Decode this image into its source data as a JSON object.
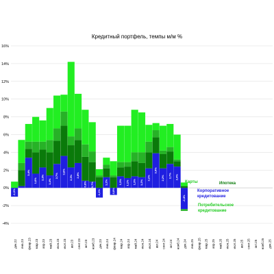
{
  "chart_data": {
    "type": "bar",
    "stacked": true,
    "title": "Кредитный портфель, темпы м/м %",
    "ylim": [
      -4,
      16
    ],
    "yticks": [
      "-4%",
      "-2%",
      "0%",
      "2%",
      "4%",
      "6%",
      "8%",
      "10%",
      "12%",
      "14%",
      "16%"
    ],
    "yticks_values": [
      -4,
      -2,
      0,
      2,
      4,
      6,
      8,
      10,
      12,
      14,
      16
    ],
    "grid": true,
    "categories": [
      "дек.22",
      "янв.23",
      "февр.23",
      "мар.23",
      "апр.23",
      "май.23",
      "июн.23",
      "июл.23",
      "авг.23",
      "сент.23",
      "окт.23",
      "нояб.23",
      "дек.23",
      "янв.24",
      "февр.24",
      "мар.24",
      "апр.24",
      "май.24",
      "июн.24",
      "июл.24",
      "авг.24",
      "сент.24",
      "окт.24",
      "нояб.24",
      "дек.24",
      "янв.25",
      "февр.25",
      "мар.25",
      "апр.25",
      "май.25",
      "июн.25",
      "июл.25",
      "авг.25",
      "сент.25",
      "окт.25",
      "нояб.25",
      "дек.25"
    ],
    "series": [
      {
        "name": "Корпоративное кредитование",
        "color": "#1f1fe0",
        "values": [
          -1.0,
          0.2,
          3.4,
          1.6,
          2.3,
          1.4,
          2.7,
          3.6,
          2.3,
          2.8,
          0.8,
          0.7,
          -1.1,
          1.2,
          -0.8,
          1.3,
          1.1,
          1.3,
          1.2,
          2.2,
          3.9,
          2.2,
          2.7,
          2.4,
          -2.4,
          null,
          null,
          null,
          null,
          null,
          null,
          null,
          null,
          null,
          null,
          null,
          null
        ]
      },
      {
        "name": "Ипотека",
        "color": "#0a7a0a",
        "values": [
          0,
          1.8,
          1.0,
          2.4,
          2.0,
          2.6,
          2.6,
          3.4,
          2.5,
          2.6,
          2.7,
          2.2,
          1.2,
          1.0,
          1.2,
          1.0,
          1.3,
          1.7,
          1.6,
          1.8,
          1.8,
          1.6,
          1.4,
          0.6,
          0.2,
          null,
          null,
          null,
          null,
          null,
          null,
          null,
          null,
          null,
          null,
          null,
          null
        ]
      },
      {
        "name": "Потребительское кредитование",
        "color": "#27b227",
        "values": [
          0,
          0.8,
          0.8,
          1.2,
          0.9,
          1.4,
          1.4,
          1.6,
          1.0,
          1.3,
          1.4,
          1.2,
          0.2,
          0.4,
          0.2,
          0.6,
          0.5,
          1.0,
          1.2,
          1.2,
          0.8,
          0.4,
          0.5,
          0.2,
          -0.2,
          null,
          null,
          null,
          null,
          null,
          null,
          null,
          null,
          null,
          null,
          null,
          null
        ]
      },
      {
        "name": "Карты",
        "color": "#22ee22",
        "values": [
          0.7,
          2.6,
          2.0,
          2.8,
          2.4,
          3.6,
          3.7,
          1.9,
          8.4,
          3.9,
          3.9,
          3.3,
          0.7,
          0.8,
          1.6,
          4.1,
          4.1,
          4.8,
          4.5,
          1.9,
          0.8,
          2.8,
          2.6,
          2.8,
          0.4,
          null,
          null,
          null,
          null,
          null,
          null,
          null,
          null,
          null,
          null,
          null,
          null
        ]
      }
    ],
    "data_labels": [
      "-1,0%",
      "",
      "3,4%",
      "1,6%",
      "2,3%",
      "1,4%",
      "2,7%",
      "3,6%",
      "2,3%",
      "2,8%",
      "0,8%",
      "0,7%",
      "-1,1%",
      "1,2%",
      "-0,8%",
      "1,3%",
      "1,1%",
      "1,3%",
      "1,2%",
      "2,2%",
      "3,9%",
      "2,2%",
      "2,7%",
      "2,4%",
      "-2,4%",
      "",
      "",
      "",
      "",
      "",
      "",
      "",
      "",
      "",
      "",
      "",
      ""
    ],
    "legend": [
      {
        "label": "Карты",
        "color": "#22cc22"
      },
      {
        "label": "Ипотека",
        "color": "#0a7a0a"
      },
      {
        "label": "Корпоративное",
        "color": "#1f1fe0"
      },
      {
        "label": "кредитование",
        "color": "#1f1fe0"
      },
      {
        "label": "Потребительское",
        "color": "#22cc22"
      },
      {
        "label": "кредитование",
        "color": "#22cc22"
      }
    ]
  }
}
